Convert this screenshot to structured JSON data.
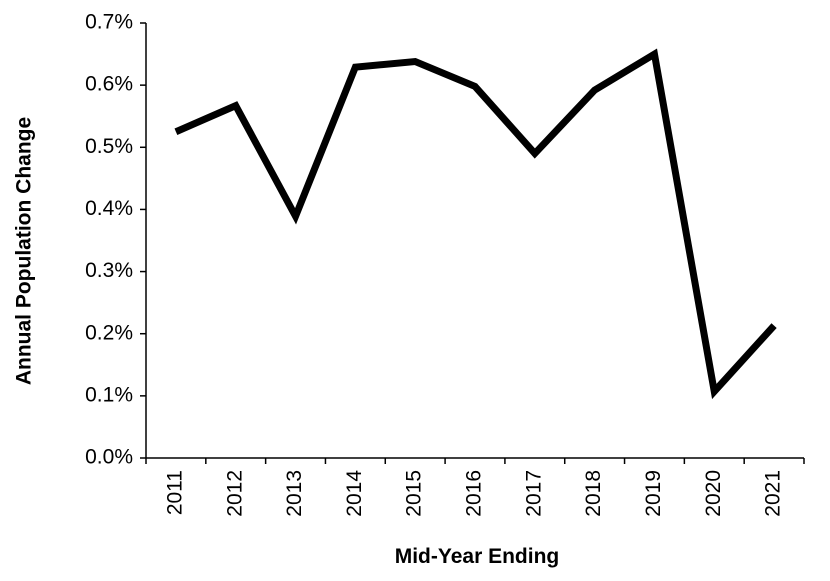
{
  "chart_data": {
    "type": "line",
    "xlabel": "Mid-Year Ending",
    "ylabel": "Annual Population Change",
    "ylim": [
      0,
      0.7
    ],
    "y_ticks": [
      0.0,
      0.1,
      0.2,
      0.3,
      0.4,
      0.5,
      0.6,
      0.7
    ],
    "y_tick_labels": [
      "0.0%",
      "0.1%",
      "0.2%",
      "0.3%",
      "0.4%",
      "0.5%",
      "0.6%",
      "0.7%"
    ],
    "categories": [
      "2011",
      "2012",
      "2013",
      "2014",
      "2015",
      "2016",
      "2017",
      "2018",
      "2019",
      "2020",
      "2021"
    ],
    "series": [
      {
        "values": [
          0.525,
          0.567,
          0.389,
          0.629,
          0.638,
          0.598,
          0.49,
          0.592,
          0.65,
          0.107,
          0.213
        ],
        "color": "#000000"
      }
    ],
    "grid": false,
    "legend": "none"
  }
}
